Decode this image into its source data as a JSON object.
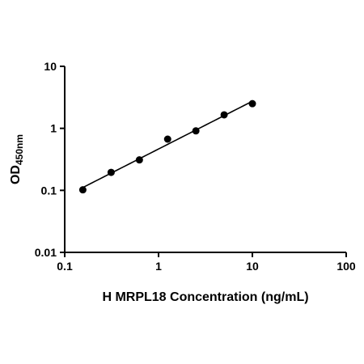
{
  "chart_data": {
    "type": "scatter",
    "title": "",
    "xlabel": "H MRPL18 Concentration (ng/mL)",
    "ylabel": "OD",
    "ylabel_sub": "450nm",
    "xscale": "log",
    "yscale": "log",
    "xlim": [
      0.1,
      100
    ],
    "ylim": [
      0.01,
      10
    ],
    "grid": false,
    "legend": "none",
    "x_ticks": [
      "0.1",
      "1",
      "10",
      "100"
    ],
    "x_tick_values": [
      0.1,
      1,
      10,
      100
    ],
    "y_ticks": [
      "0.01",
      "0.1",
      "1",
      "10"
    ],
    "y_tick_values": [
      0.01,
      0.1,
      1,
      10
    ],
    "series": [
      {
        "x": [
          0.156,
          0.3125,
          0.625,
          1.25,
          2.5,
          5,
          10
        ],
        "y": [
          0.102,
          0.195,
          0.31,
          0.67,
          0.91,
          1.65,
          2.5
        ]
      }
    ],
    "colors": {
      "marker": "#000000",
      "line": "#000000"
    }
  }
}
